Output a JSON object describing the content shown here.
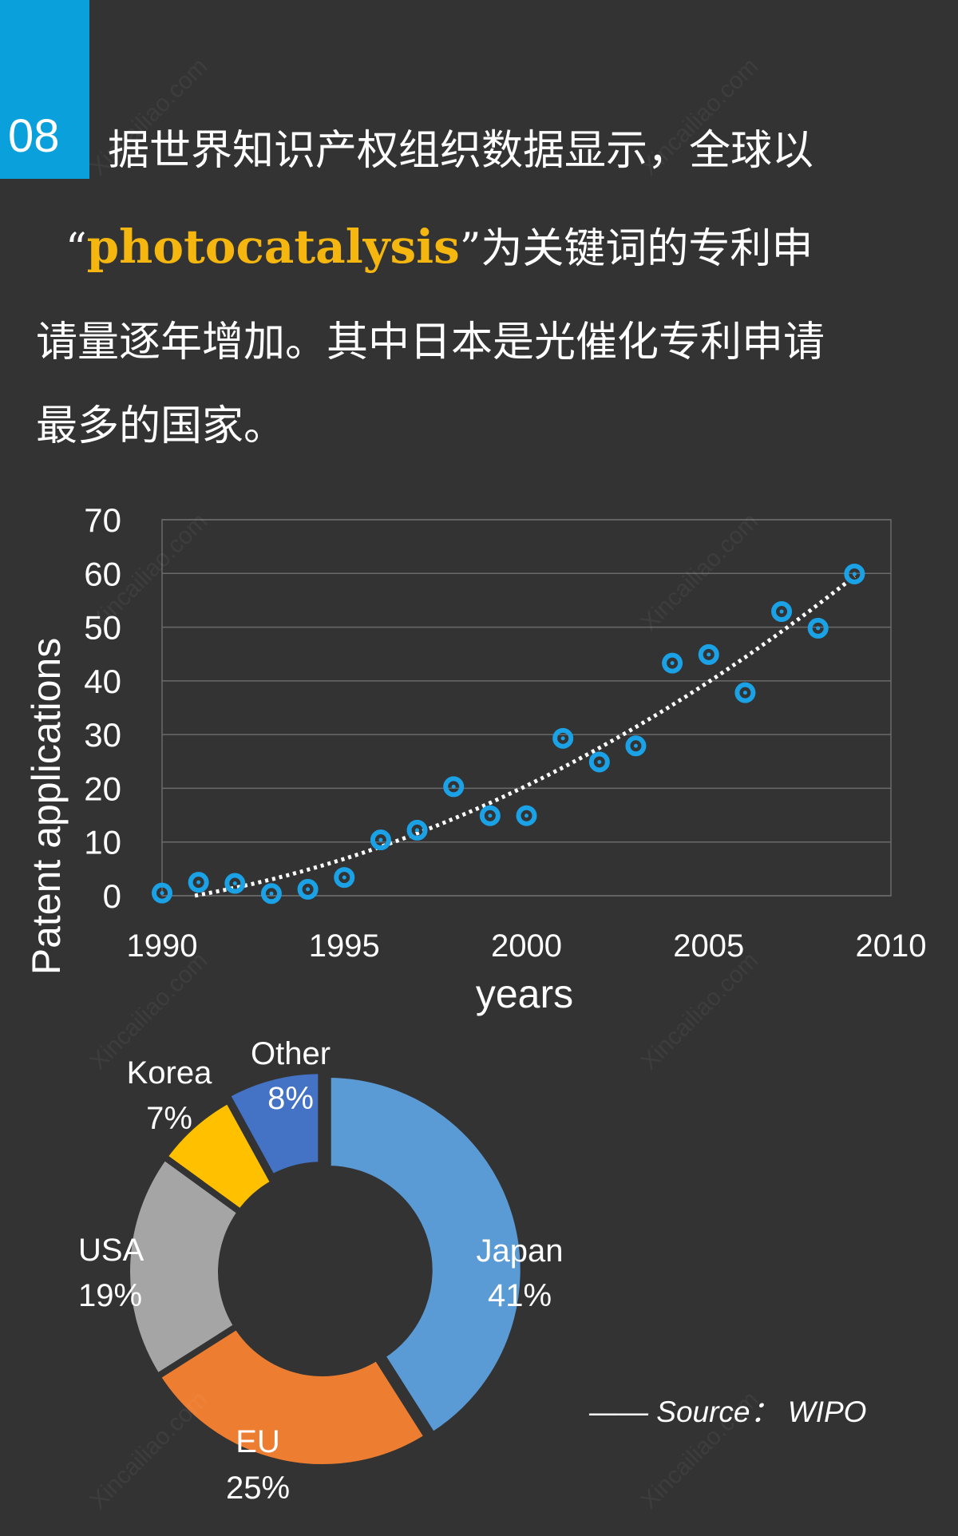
{
  "badge": {
    "number": "08"
  },
  "intro": {
    "line1": "据世界知识产权组织数据显示，全球以",
    "open_quote": "“",
    "keyword": "photocatalysis",
    "close_quote": "”",
    "line2_rest": "为关键词的专利申",
    "line3": "请量逐年增加。其中日本是光催化专利申请",
    "line4": "最多的国家。"
  },
  "source": "—— Source： WIPO",
  "watermark": "Xincailiao.com",
  "colors": {
    "background": "#333333",
    "accent": "#0aa0dc",
    "keyword": "#f5b70f",
    "point": "#1aa1e6",
    "japan": "#5b9bd5",
    "eu": "#ed7d31",
    "usa": "#a5a5a5",
    "korea": "#ffc000",
    "other": "#4472c4"
  },
  "chart_data": [
    {
      "type": "scatter",
      "xlabel": "years",
      "ylabel": "Patent applications",
      "xlim": [
        1990,
        2010
      ],
      "ylim": [
        0,
        70
      ],
      "xticks": [
        1990,
        1995,
        2000,
        2005,
        2010
      ],
      "yticks": [
        0,
        10,
        20,
        30,
        40,
        50,
        60,
        70
      ],
      "grid": true,
      "trendline": "dotted polynomial",
      "x": [
        1990,
        1991,
        1992,
        1993,
        1994,
        1995,
        1996,
        1997,
        1998,
        1999,
        2000,
        2001,
        2002,
        2003,
        2004,
        2005,
        2006,
        2007,
        2008,
        2009
      ],
      "y": [
        0.5,
        2.5,
        2.3,
        0.4,
        1.2,
        3.4,
        10.4,
        12.2,
        20.3,
        14.9,
        14.9,
        29.3,
        24.9,
        27.9,
        43.3,
        44.9,
        37.8,
        52.9,
        49.8,
        59.9
      ]
    },
    {
      "type": "pie",
      "style": "donut",
      "categories": [
        "Japan",
        "EU",
        "USA",
        "Korea",
        "Other"
      ],
      "values": [
        41,
        25,
        19,
        7,
        8
      ],
      "labels": [
        "41%",
        "25%",
        "19%",
        "7%",
        "8%"
      ]
    }
  ]
}
